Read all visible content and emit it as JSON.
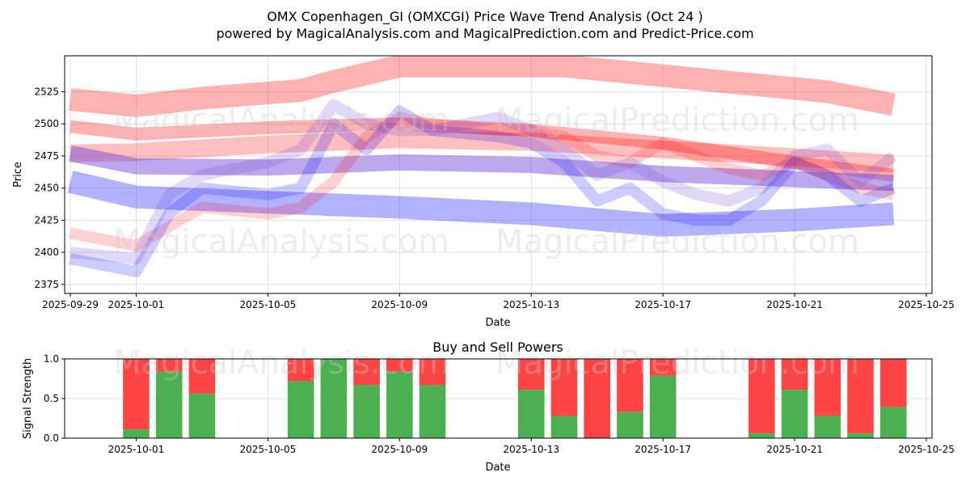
{
  "header": {
    "title": "OMX Copenhagen_GI (OMXCGI) Price Wave Trend Analysis (Oct 24 )",
    "subtitle": "powered by MagicalAnalysis.com and MagicalPrediction.com and Predict-Price.com"
  },
  "watermarks": [
    "MagicalAnalysis.com",
    "MagicalPrediction.com"
  ],
  "colors": {
    "red_band": "#ff0000",
    "blue_band": "#0000ff",
    "purple_band": "#6a3fd6",
    "buy": "#4caf50",
    "sell": "#ff4444",
    "grid": "#e0e0e0"
  },
  "chart_data": [
    {
      "type": "area",
      "title": "",
      "xlabel": "Date",
      "ylabel": "Price",
      "xlim": [
        "2025-09-29",
        "2025-10-25"
      ],
      "ylim": [
        2368,
        2553
      ],
      "x_ticks": [
        "2025-09-29",
        "2025-10-01",
        "2025-10-05",
        "2025-10-09",
        "2025-10-13",
        "2025-10-17",
        "2025-10-21",
        "2025-10-25"
      ],
      "y_ticks": [
        2375,
        2400,
        2425,
        2450,
        2475,
        2500,
        2525
      ],
      "grid": true,
      "series": [
        {
          "name": "red-upper-band",
          "color": "red",
          "opacity": 0.3,
          "width": 28,
          "x": [
            "2025-09-29",
            "2025-10-01",
            "2025-10-03",
            "2025-10-06",
            "2025-10-07",
            "2025-10-09",
            "2025-10-14",
            "2025-10-16",
            "2025-10-20",
            "2025-10-22",
            "2025-10-24"
          ],
          "y": [
            2519,
            2514,
            2520,
            2526,
            2533,
            2545,
            2545,
            2540,
            2530,
            2525,
            2515
          ]
        },
        {
          "name": "red-mid-band",
          "color": "red",
          "opacity": 0.25,
          "width": 22,
          "x": [
            "2025-09-29",
            "2025-10-01",
            "2025-10-05",
            "2025-10-09",
            "2025-10-13",
            "2025-10-17",
            "2025-10-21",
            "2025-10-24"
          ],
          "y": [
            2477,
            2478,
            2484,
            2488,
            2486,
            2480,
            2474,
            2469
          ]
        },
        {
          "name": "red-line-band",
          "color": "red",
          "opacity": 0.3,
          "width": 16,
          "x": [
            "2025-09-29",
            "2025-10-01",
            "2025-10-05",
            "2025-10-09",
            "2025-10-13",
            "2025-10-17",
            "2025-10-21",
            "2025-10-24"
          ],
          "y": [
            2498,
            2492,
            2497,
            2500,
            2495,
            2485,
            2470,
            2460
          ]
        },
        {
          "name": "purple-band",
          "color": "purple",
          "opacity": 0.45,
          "width": 20,
          "x": [
            "2025-09-29",
            "2025-10-01",
            "2025-10-05",
            "2025-10-09",
            "2025-10-13",
            "2025-10-17",
            "2025-10-21",
            "2025-10-24"
          ],
          "y": [
            2477,
            2467,
            2466,
            2470,
            2468,
            2461,
            2457,
            2454
          ]
        },
        {
          "name": "blue-lower-band",
          "color": "blue",
          "opacity": 0.3,
          "width": 28,
          "x": [
            "2025-09-29",
            "2025-10-01",
            "2025-10-05",
            "2025-10-09",
            "2025-10-13",
            "2025-10-17",
            "2025-10-21",
            "2025-10-24"
          ],
          "y": [
            2455,
            2443,
            2439,
            2435,
            2430,
            2421,
            2425,
            2430
          ]
        },
        {
          "name": "price-wave-red",
          "color": "red",
          "opacity": 0.18,
          "width": 14,
          "x": [
            "2025-09-29",
            "2025-10-01",
            "2025-10-02",
            "2025-10-03",
            "2025-10-05",
            "2025-10-06",
            "2025-10-07",
            "2025-10-08",
            "2025-10-09",
            "2025-10-10",
            "2025-10-12",
            "2025-10-13",
            "2025-10-14",
            "2025-10-15",
            "2025-10-16",
            "2025-10-17",
            "2025-10-18",
            "2025-10-19",
            "2025-10-20",
            "2025-10-21",
            "2025-10-22",
            "2025-10-23",
            "2025-10-24"
          ],
          "y": [
            2415,
            2405,
            2420,
            2435,
            2430,
            2435,
            2455,
            2490,
            2505,
            2500,
            2495,
            2495,
            2490,
            2475,
            2470,
            2485,
            2475,
            2465,
            2460,
            2470,
            2460,
            2450,
            2445
          ]
        },
        {
          "name": "price-wave-blue",
          "color": "blue",
          "opacity": 0.2,
          "width": 14,
          "x": [
            "2025-09-29",
            "2025-10-01",
            "2025-10-02",
            "2025-10-03",
            "2025-10-05",
            "2025-10-06",
            "2025-10-07",
            "2025-10-08",
            "2025-10-09",
            "2025-10-10",
            "2025-10-12",
            "2025-10-13",
            "2025-10-14",
            "2025-10-15",
            "2025-10-16",
            "2025-10-17",
            "2025-10-18",
            "2025-10-19",
            "2025-10-20",
            "2025-10-21",
            "2025-10-22",
            "2025-10-23",
            "2025-10-24"
          ],
          "y": [
            2395,
            2385,
            2430,
            2450,
            2445,
            2450,
            2500,
            2480,
            2510,
            2495,
            2490,
            2485,
            2470,
            2440,
            2450,
            2430,
            2425,
            2425,
            2440,
            2470,
            2460,
            2440,
            2450
          ]
        },
        {
          "name": "price-wave-purple",
          "color": "purple",
          "opacity": 0.2,
          "width": 14,
          "x": [
            "2025-09-29",
            "2025-10-01",
            "2025-10-02",
            "2025-10-03",
            "2025-10-05",
            "2025-10-06",
            "2025-10-07",
            "2025-10-08",
            "2025-10-09",
            "2025-10-10",
            "2025-10-12",
            "2025-10-13",
            "2025-10-14",
            "2025-10-15",
            "2025-10-16",
            "2025-10-17",
            "2025-10-18",
            "2025-10-19",
            "2025-10-20",
            "2025-10-21",
            "2025-10-22",
            "2025-10-23",
            "2025-10-24"
          ],
          "y": [
            2400,
            2395,
            2445,
            2460,
            2470,
            2480,
            2515,
            2500,
            2495,
            2495,
            2505,
            2495,
            2480,
            2460,
            2470,
            2455,
            2445,
            2440,
            2450,
            2475,
            2480,
            2455,
            2475
          ]
        }
      ]
    },
    {
      "type": "bar",
      "title": "Buy and Sell Powers",
      "xlabel": "Date",
      "ylabel": "Signal Strength",
      "xlim": [
        "2025-09-29",
        "2025-10-25"
      ],
      "ylim": [
        0,
        1.0
      ],
      "x_ticks": [
        "2025-10-01",
        "2025-10-05",
        "2025-10-09",
        "2025-10-13",
        "2025-10-17",
        "2025-10-21",
        "2025-10-25"
      ],
      "y_ticks": [
        "0.0",
        "0.5",
        "1.0"
      ],
      "grid": true,
      "categories": [
        "2025-10-01",
        "2025-10-02",
        "2025-10-03",
        "2025-10-06",
        "2025-10-07",
        "2025-10-08",
        "2025-10-09",
        "2025-10-10",
        "2025-10-13",
        "2025-10-14",
        "2025-10-15",
        "2025-10-16",
        "2025-10-17",
        "2025-10-20",
        "2025-10-21",
        "2025-10-22",
        "2025-10-23",
        "2025-10-24"
      ],
      "series": [
        {
          "name": "Buy",
          "color": "green",
          "values": [
            0.11,
            0.84,
            0.56,
            0.72,
            1.0,
            0.67,
            0.84,
            0.67,
            0.61,
            0.28,
            0.0,
            0.33,
            0.79,
            0.06,
            0.61,
            0.28,
            0.06,
            0.39
          ]
        },
        {
          "name": "Sell",
          "color": "red",
          "values": [
            0.89,
            0.16,
            0.44,
            0.28,
            0.0,
            0.33,
            0.16,
            0.33,
            0.39,
            0.72,
            1.0,
            0.67,
            0.21,
            0.94,
            0.39,
            0.72,
            0.94,
            0.61
          ]
        }
      ]
    }
  ]
}
